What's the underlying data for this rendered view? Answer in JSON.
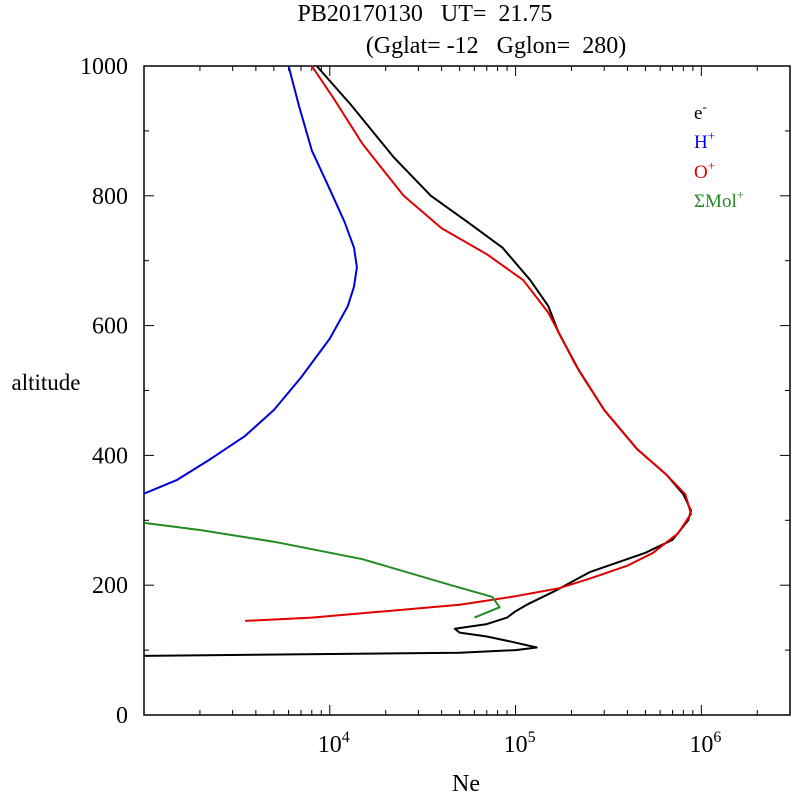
{
  "chart_data": {
    "type": "line",
    "title_line1": "PB20170130   UT=  21.75",
    "title_line2": "(Gglat= -12   Gglon=  280)",
    "xlabel": "Ne",
    "ylabel": "altitude",
    "x_scale": "log",
    "xlim": [
      1000,
      3000000
    ],
    "ylim": [
      0,
      1000
    ],
    "y_ticks": [
      {
        "value": 0,
        "label": "0"
      },
      {
        "value": 200,
        "label": "200"
      },
      {
        "value": 400,
        "label": "400"
      },
      {
        "value": 600,
        "label": "600"
      },
      {
        "value": 800,
        "label": "800"
      },
      {
        "value": 1000,
        "label": "1000"
      }
    ],
    "x_ticks": [
      {
        "value": 10000,
        "base": "10",
        "exp": "4"
      },
      {
        "value": 100000,
        "base": "10",
        "exp": "5"
      },
      {
        "value": 1000000,
        "base": "10",
        "exp": "6"
      }
    ],
    "series": [
      {
        "name": "electrons",
        "legend_base": "e",
        "legend_sup": "-",
        "color": "#000000",
        "points": [
          [
            1000,
            91
          ],
          [
            50000,
            96
          ],
          [
            100000,
            100
          ],
          [
            130000,
            104
          ],
          [
            95000,
            113
          ],
          [
            70000,
            121
          ],
          [
            50000,
            127
          ],
          [
            47000,
            133
          ],
          [
            70000,
            140
          ],
          [
            90000,
            150
          ],
          [
            100000,
            160
          ],
          [
            115000,
            170
          ],
          [
            160000,
            190
          ],
          [
            250000,
            220
          ],
          [
            500000,
            250
          ],
          [
            700000,
            270
          ],
          [
            850000,
            300
          ],
          [
            880000,
            315
          ],
          [
            800000,
            340
          ],
          [
            650000,
            370
          ],
          [
            450000,
            410
          ],
          [
            300000,
            470
          ],
          [
            220000,
            530
          ],
          [
            170000,
            590
          ],
          [
            150000,
            630
          ],
          [
            120000,
            670
          ],
          [
            85000,
            720
          ],
          [
            55000,
            760
          ],
          [
            35000,
            800
          ],
          [
            22000,
            860
          ],
          [
            13000,
            940
          ],
          [
            8500,
            1000
          ]
        ]
      },
      {
        "name": "hydrogen-ions",
        "legend_base": "H",
        "legend_sup": "+",
        "color": "#0000dd",
        "points": [
          [
            1000,
            341
          ],
          [
            1500,
            362
          ],
          [
            2300,
            395
          ],
          [
            3500,
            430
          ],
          [
            5000,
            470
          ],
          [
            7000,
            520
          ],
          [
            10000,
            580
          ],
          [
            12500,
            630
          ],
          [
            13500,
            660
          ],
          [
            14000,
            690
          ],
          [
            13500,
            720
          ],
          [
            12000,
            760
          ],
          [
            10000,
            810
          ],
          [
            8000,
            870
          ],
          [
            6800,
            940
          ],
          [
            6000,
            1000
          ]
        ]
      },
      {
        "name": "oxygen-ions",
        "legend_base": "O",
        "legend_sup": "+",
        "color": "#e00000",
        "points": [
          [
            3500,
            145
          ],
          [
            8000,
            150
          ],
          [
            20000,
            160
          ],
          [
            50000,
            170
          ],
          [
            100000,
            183
          ],
          [
            170000,
            195
          ],
          [
            250000,
            210
          ],
          [
            400000,
            230
          ],
          [
            550000,
            250
          ],
          [
            750000,
            280
          ],
          [
            880000,
            310
          ],
          [
            820000,
            340
          ],
          [
            650000,
            370
          ],
          [
            450000,
            410
          ],
          [
            300000,
            470
          ],
          [
            210000,
            540
          ],
          [
            150000,
            620
          ],
          [
            110000,
            670
          ],
          [
            70000,
            710
          ],
          [
            40000,
            750
          ],
          [
            25000,
            800
          ],
          [
            15000,
            880
          ],
          [
            10500,
            950
          ],
          [
            8000,
            1000
          ]
        ]
      },
      {
        "name": "molecular-ions",
        "legend_base": "ΣMol",
        "legend_sup": "+",
        "color": "#228b22",
        "points": [
          [
            1000,
            296
          ],
          [
            2000,
            285
          ],
          [
            5000,
            267
          ],
          [
            15000,
            240
          ],
          [
            45000,
            200
          ],
          [
            75000,
            182
          ],
          [
            82000,
            166
          ],
          [
            60000,
            150
          ]
        ]
      }
    ]
  }
}
